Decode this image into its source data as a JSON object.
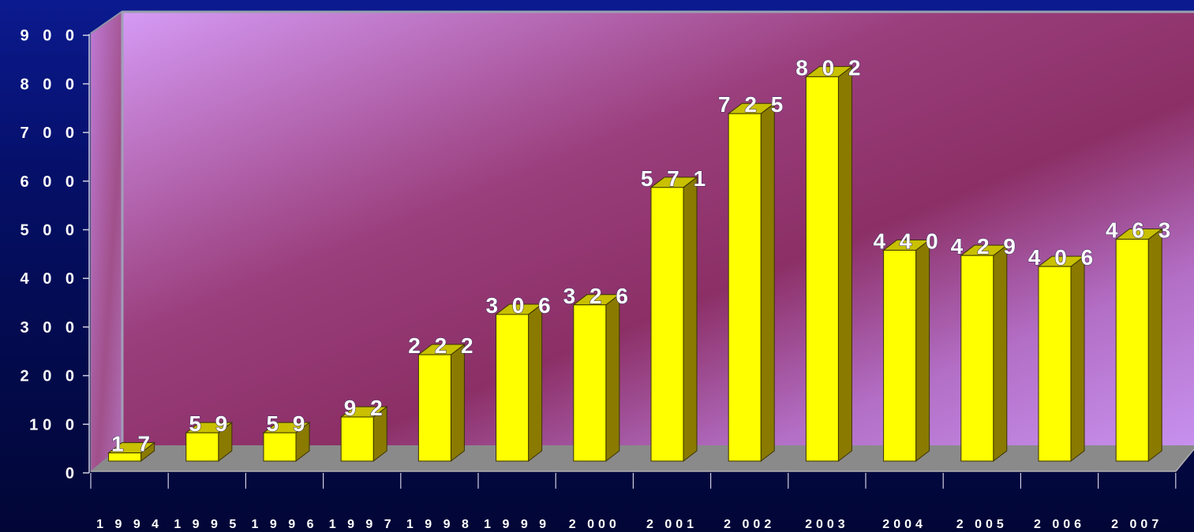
{
  "chart_data": {
    "type": "bar",
    "categories": [
      "1 9 9 4",
      "1 9 9 5",
      "1 9 9 6",
      "1 9 9 7",
      "1 9 9 8",
      "1 9 9 9",
      "2 000",
      "2 001",
      "2 002",
      "2003",
      "2004",
      "2 005",
      "2 006",
      "2 007"
    ],
    "values": [
      17,
      59,
      59,
      92,
      222,
      306,
      326,
      571,
      725,
      802,
      440,
      429,
      406,
      463
    ],
    "data_labels": [
      "1 7",
      "5 9",
      "5 9",
      "9 2",
      "2 2 2",
      "3 0 6",
      "3 2 6",
      "5 7 1",
      "7 2 5",
      "8 0 2",
      "4 4 0",
      "4 2 9",
      "4 0 6",
      "4 6 3"
    ],
    "y_ticks": [
      0,
      100,
      200,
      300,
      400,
      500,
      600,
      700,
      800,
      900
    ],
    "y_tick_labels": [
      "0",
      "10 0",
      "2 0 0",
      "3 0 0",
      "4 0 0",
      "5 0 0",
      "6 0 0",
      "7 0 0",
      "8 0 0",
      "9 0 0"
    ],
    "ylim": [
      0,
      900
    ],
    "title": "",
    "xlabel": "",
    "ylabel": "",
    "grid": false,
    "legend": "none",
    "bar_color": "#ffff00",
    "bar_side_color": "#8a7a00",
    "bar_top_color": "#c8c000",
    "wall_color": "#c48fe6",
    "floor_color": "#8a8a8a"
  }
}
